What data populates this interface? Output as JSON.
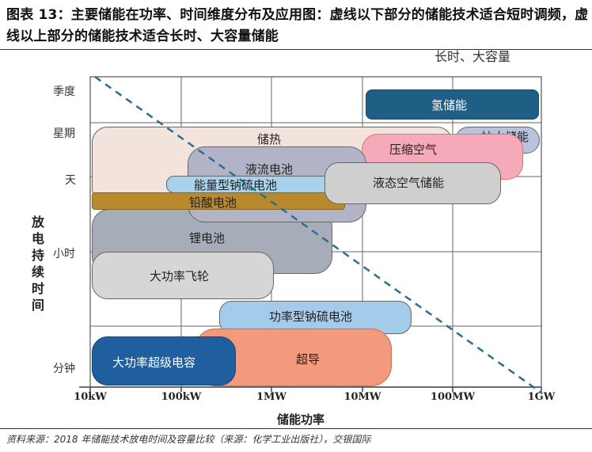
{
  "title": "图表 13：主要储能在功率、时间维度分布及应用图：虚线以下部分的储能技术适合短时调频，虚线以上部分的储能技术适合长时、大容量储能",
  "corner_label": "长时、大容量",
  "y_axis": {
    "label": "放电持续时间",
    "ticks": [
      "季度",
      "星期",
      "天",
      "小时",
      "分钟"
    ]
  },
  "x_axis": {
    "label": "储能功率",
    "ticks": [
      "10kW",
      "100kW",
      "1MW",
      "10MW",
      "100MW",
      "1GW"
    ]
  },
  "technologies": {
    "hydrogen": "氢储能",
    "pumped_hydro": "抽水储能",
    "thermal": "储热",
    "compressed_air": "压缩空气",
    "flow_battery": "液流电池",
    "liquid_air": "液态空气储能",
    "energy_nas": "能量型钠硫电池",
    "lead_acid": "铅酸电池",
    "lithium": "锂电池",
    "flywheel": "大功率飞轮",
    "power_nas": "功率型钠硫电池",
    "supercap": "大功率超级电容",
    "superconducting": "超导"
  },
  "colors": {
    "hydrogen": "#1f5f86",
    "pumped_hydro": "#b9c3dc",
    "thermal": "#f2e3dc",
    "compressed_air": "#f6a9b9",
    "flow_battery": "#b3b3c8",
    "liquid_air": "#cfcfcf",
    "energy_nas": "#a8d2ec",
    "lead_acid": "#b9892e",
    "lithium": "#a6acb8",
    "flywheel": "#d6d6d6",
    "power_nas": "#a4cbea",
    "supercap": "#1f5f9f",
    "superconducting": "#f39a7c",
    "dashed_line": "#2a6f8f"
  },
  "source": "资料来源：2018 年储能技术放电时间及容量比较（来源：化学工业出版社），交银国际"
}
